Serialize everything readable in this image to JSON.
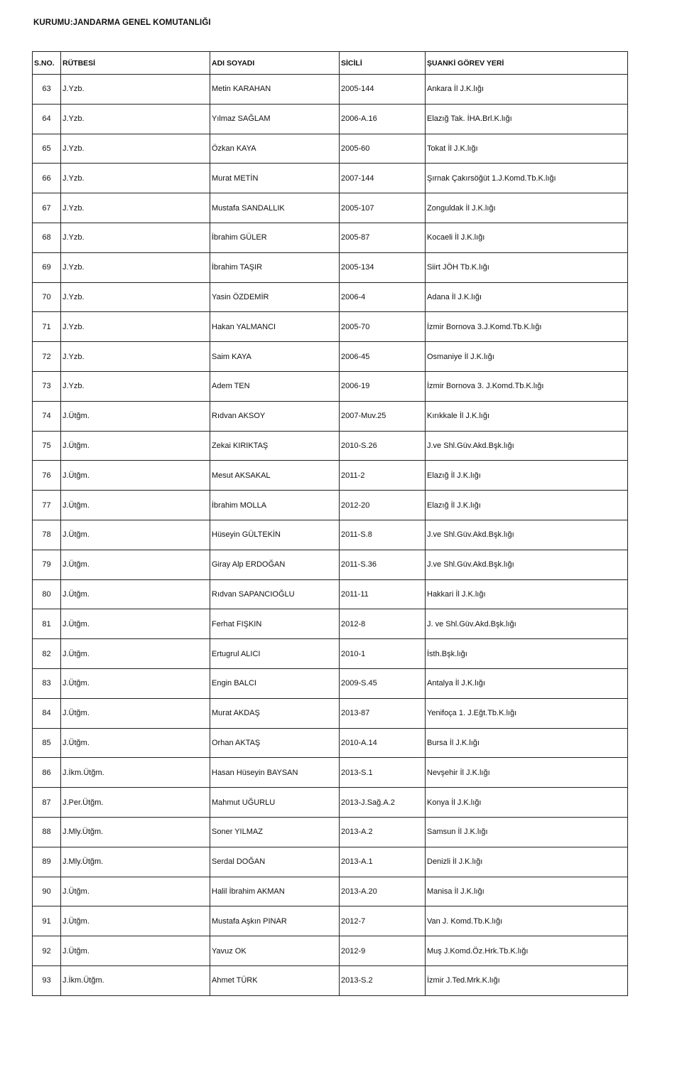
{
  "title": "KURUMU:JANDARMA GENEL KOMUTANLIĞI",
  "table": {
    "headers": [
      "S.NO.",
      "RÜTBESİ",
      "ADI SOYADI",
      "SİCİLİ",
      "ŞUANKİ GÖREV YERİ"
    ],
    "rows": [
      [
        "63",
        "J.Yzb.",
        "Metin KARAHAN",
        "2005-144",
        "Ankara İl J.K.lığı"
      ],
      [
        "64",
        "J.Yzb.",
        "Yılmaz SAĞLAM",
        "2006-A.16",
        "Elazığ Tak. İHA.Brl.K.lığı"
      ],
      [
        "65",
        "J.Yzb.",
        "Özkan KAYA",
        "2005-60",
        "Tokat İl J.K.lığı"
      ],
      [
        "66",
        "J.Yzb.",
        "Murat METİN",
        "2007-144",
        "Şırnak Çakırsöğüt 1.J.Komd.Tb.K.lığı"
      ],
      [
        "67",
        "J.Yzb.",
        "Mustafa SANDALLIK",
        "2005-107",
        "Zonguldak İl J.K.lığı"
      ],
      [
        "68",
        "J.Yzb.",
        "İbrahim GÜLER",
        "2005-87",
        "Kocaeli İl J.K.lığı"
      ],
      [
        "69",
        "J.Yzb.",
        "İbrahim TAŞIR",
        "2005-134",
        "Siirt JÖH Tb.K.lığı"
      ],
      [
        "70",
        "J.Yzb.",
        "Yasin ÖZDEMİR",
        "2006-4",
        "Adana İl J.K.lığı"
      ],
      [
        "71",
        "J.Yzb.",
        "Hakan YALMANCI",
        "2005-70",
        "İzmir Bornova 3.J.Komd.Tb.K.lığı"
      ],
      [
        "72",
        "J.Yzb.",
        "Saim KAYA",
        "2006-45",
        "Osmaniye İl J.K.lığı"
      ],
      [
        "73",
        "J.Yzb.",
        "Adem TEN",
        "2006-19",
        "İzmir Bornova 3. J.Komd.Tb.K.lığı"
      ],
      [
        "74",
        "J.Ütğm.",
        "Rıdvan AKSOY",
        "2007-Muv.25",
        "Kırıkkale İl J.K.lığı"
      ],
      [
        "75",
        "J.Ütğm.",
        "Zekai KIRIKTAŞ",
        "2010-S.26",
        "J.ve Shl.Güv.Akd.Bşk.lığı"
      ],
      [
        "76",
        "J.Ütğm.",
        "Mesut AKSAKAL",
        "2011-2",
        "Elazığ İl J.K.lığı"
      ],
      [
        "77",
        "J.Ütğm.",
        "İbrahim MOLLA",
        "2012-20",
        "Elazığ İl J.K.lığı"
      ],
      [
        "78",
        "J.Ütğm.",
        "Hüseyin GÜLTEKİN",
        "2011-S.8",
        "J.ve Shl.Güv.Akd.Bşk.lığı"
      ],
      [
        "79",
        "J.Ütğm.",
        "Giray Alp ERDOĞAN",
        "2011-S.36",
        "J.ve Shl.Güv.Akd.Bşk.lığı"
      ],
      [
        "80",
        "J.Ütğm.",
        "Rıdvan SAPANCIOĞLU",
        "2011-11",
        "Hakkari İl J.K.lığı"
      ],
      [
        "81",
        "J.Ütğm.",
        "Ferhat FIŞKIN",
        "2012-8",
        "J. ve Shl.Güv.Akd.Bşk.lığı"
      ],
      [
        "82",
        "J.Ütğm.",
        "Ertugrul ALICI",
        "2010-1",
        "İsth.Bşk.lığı"
      ],
      [
        "83",
        "J.Ütğm.",
        "Engin BALCI",
        "2009-S.45",
        "Antalya İl J.K.lığı"
      ],
      [
        "84",
        "J.Ütğm.",
        "Murat AKDAŞ",
        "2013-87",
        "Yenifoça 1. J.Eğt.Tb.K.lığı"
      ],
      [
        "85",
        "J.Ütğm.",
        "Orhan AKTAŞ",
        "2010-A.14",
        "Bursa İl J.K.lığı"
      ],
      [
        "86",
        "J.İkm.Ütğm.",
        "Hasan Hüseyin BAYSAN",
        "2013-S.1",
        "Nevşehir İl J.K.lığı"
      ],
      [
        "87",
        "J.Per.Ütğm.",
        "Mahmut UĞURLU",
        "2013-J.Sağ.A.2",
        "Konya İl J.K.lığı"
      ],
      [
        "88",
        "J.Mly.Ütğm.",
        "Soner YILMAZ",
        "2013-A.2",
        "Samsun İl J.K.lığı"
      ],
      [
        "89",
        "J.Mly.Ütğm.",
        "Serdal DOĞAN",
        "2013-A.1",
        "Denizli İl J.K.lığı"
      ],
      [
        "90",
        "J.Ütğm.",
        "Halil İbrahim AKMAN",
        "2013-A.20",
        "Manisa İl J.K.lığı"
      ],
      [
        "91",
        "J.Ütğm.",
        "Mustafa Aşkın PINAR",
        "2012-7",
        "Van J. Komd.Tb.K.lığı"
      ],
      [
        "92",
        "J.Ütğm.",
        "Yavuz OK",
        "2012-9",
        "Muş J.Komd.Öz.Hrk.Tb.K.lığı"
      ],
      [
        "93",
        "J.İkm.Ütğm.",
        "Ahmet TÜRK",
        "2013-S.2",
        "İzmir J.Ted.Mrk.K.lığı"
      ]
    ]
  }
}
